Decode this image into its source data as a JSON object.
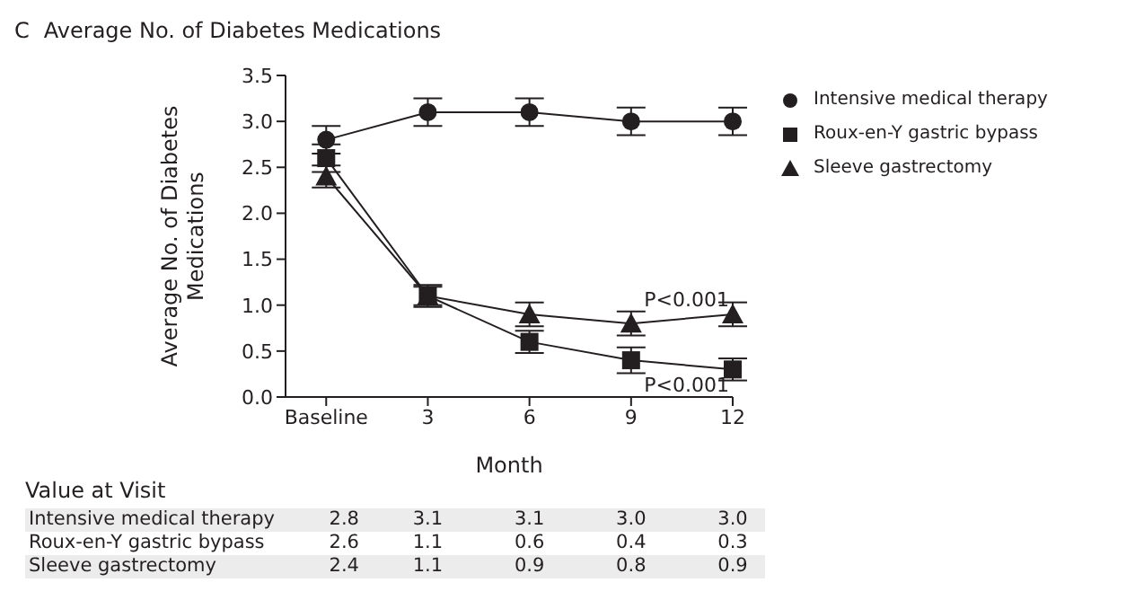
{
  "chart_data": {
    "type": "line",
    "title": "Average No. of Diabetes Medications",
    "xlabel": "Month",
    "ylabel": "Average No. of Diabetes Medications",
    "categories": [
      "Baseline",
      "3",
      "6",
      "9",
      "12"
    ],
    "ylim": [
      0,
      3.5
    ],
    "yticks": [
      {
        "value": 0,
        "label": "0.0"
      },
      {
        "value": 0.5,
        "label": "0.5"
      },
      {
        "value": 1,
        "label": "1.0"
      },
      {
        "value": 1.5,
        "label": "1.5"
      },
      {
        "value": 2,
        "label": "2.0"
      },
      {
        "value": 2.5,
        "label": "2.5"
      },
      {
        "value": 3,
        "label": "3.0"
      },
      {
        "value": 3.5,
        "label": "3.5"
      }
    ],
    "grid": false,
    "legend": "right",
    "line_style": "solid",
    "series": [
      {
        "name": "Intensive medical therapy",
        "color": "#231f20",
        "marker": "circle",
        "values": [
          2.8,
          3.1,
          3.1,
          3.0,
          3.0
        ],
        "errors": [
          0.15,
          0.15,
          0.15,
          0.15,
          0.15
        ],
        "value_labels": [
          "2.8",
          "3.1",
          "3.1",
          "3.0",
          "3.0"
        ]
      },
      {
        "name": "Roux-en-Y gastric bypass",
        "color": "#231f20",
        "marker": "square",
        "values": [
          2.6,
          1.1,
          0.6,
          0.4,
          0.3
        ],
        "errors": [
          0.15,
          0.12,
          0.12,
          0.14,
          0.12
        ],
        "value_labels": [
          "2.6",
          "1.1",
          "0.6",
          "0.4",
          "0.3"
        ]
      },
      {
        "name": "Sleeve gastrectomy",
        "color": "#231f20",
        "marker": "triangle",
        "values": [
          2.4,
          1.1,
          0.9,
          0.8,
          0.9
        ],
        "errors": [
          0.12,
          0.1,
          0.13,
          0.13,
          0.13
        ],
        "value_labels": [
          "2.4",
          "1.1",
          "0.9",
          "0.8",
          "0.9"
        ]
      }
    ],
    "annotations": [
      "C",
      {
        "text": "P<0.001",
        "x": "12",
        "y": 1.05
      },
      {
        "text": "P<0.001",
        "x": "12",
        "y": 0.12
      },
      "Value at Visit"
    ]
  }
}
